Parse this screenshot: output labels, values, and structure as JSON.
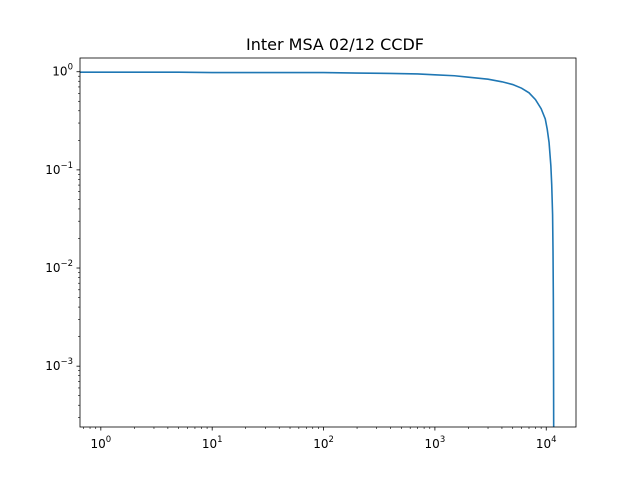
{
  "chart_data": {
    "type": "line",
    "title": "Inter MSA 02/12 CCDF",
    "xlabel": "",
    "ylabel": "",
    "xscale": "log",
    "yscale": "log",
    "xlim": [
      0.65,
      18500
    ],
    "ylim": [
      0.00024,
      1.38
    ],
    "grid": false,
    "legend": "none",
    "x_ticks": [
      {
        "value": 1,
        "base": "10",
        "exp": "0"
      },
      {
        "value": 10,
        "base": "10",
        "exp": "1"
      },
      {
        "value": 100,
        "base": "10",
        "exp": "2"
      },
      {
        "value": 1000,
        "base": "10",
        "exp": "3"
      },
      {
        "value": 10000,
        "base": "10",
        "exp": "4"
      }
    ],
    "y_ticks": [
      {
        "value": 1,
        "base": "10",
        "exp": "0"
      },
      {
        "value": 0.1,
        "base": "10",
        "exp": "−1"
      },
      {
        "value": 0.01,
        "base": "10",
        "exp": "−2"
      },
      {
        "value": 0.001,
        "base": "10",
        "exp": "−3"
      }
    ],
    "series": [
      {
        "color": "#1f77b4",
        "x": [
          0.65,
          1,
          2,
          5,
          10,
          20,
          50,
          100,
          200,
          400,
          700,
          1000,
          1500,
          2000,
          3000,
          4000,
          5000,
          6000,
          7000,
          8000,
          9000,
          9800,
          10200,
          10600,
          11000,
          11200,
          11400,
          11500,
          11580,
          11620,
          11660
        ],
        "y": [
          0.99,
          0.99,
          0.99,
          0.99,
          0.98,
          0.98,
          0.98,
          0.98,
          0.97,
          0.96,
          0.95,
          0.93,
          0.91,
          0.88,
          0.84,
          0.79,
          0.74,
          0.68,
          0.61,
          0.52,
          0.42,
          0.33,
          0.26,
          0.19,
          0.11,
          0.07,
          0.035,
          0.015,
          0.005,
          0.0015,
          0.00024
        ]
      }
    ]
  }
}
